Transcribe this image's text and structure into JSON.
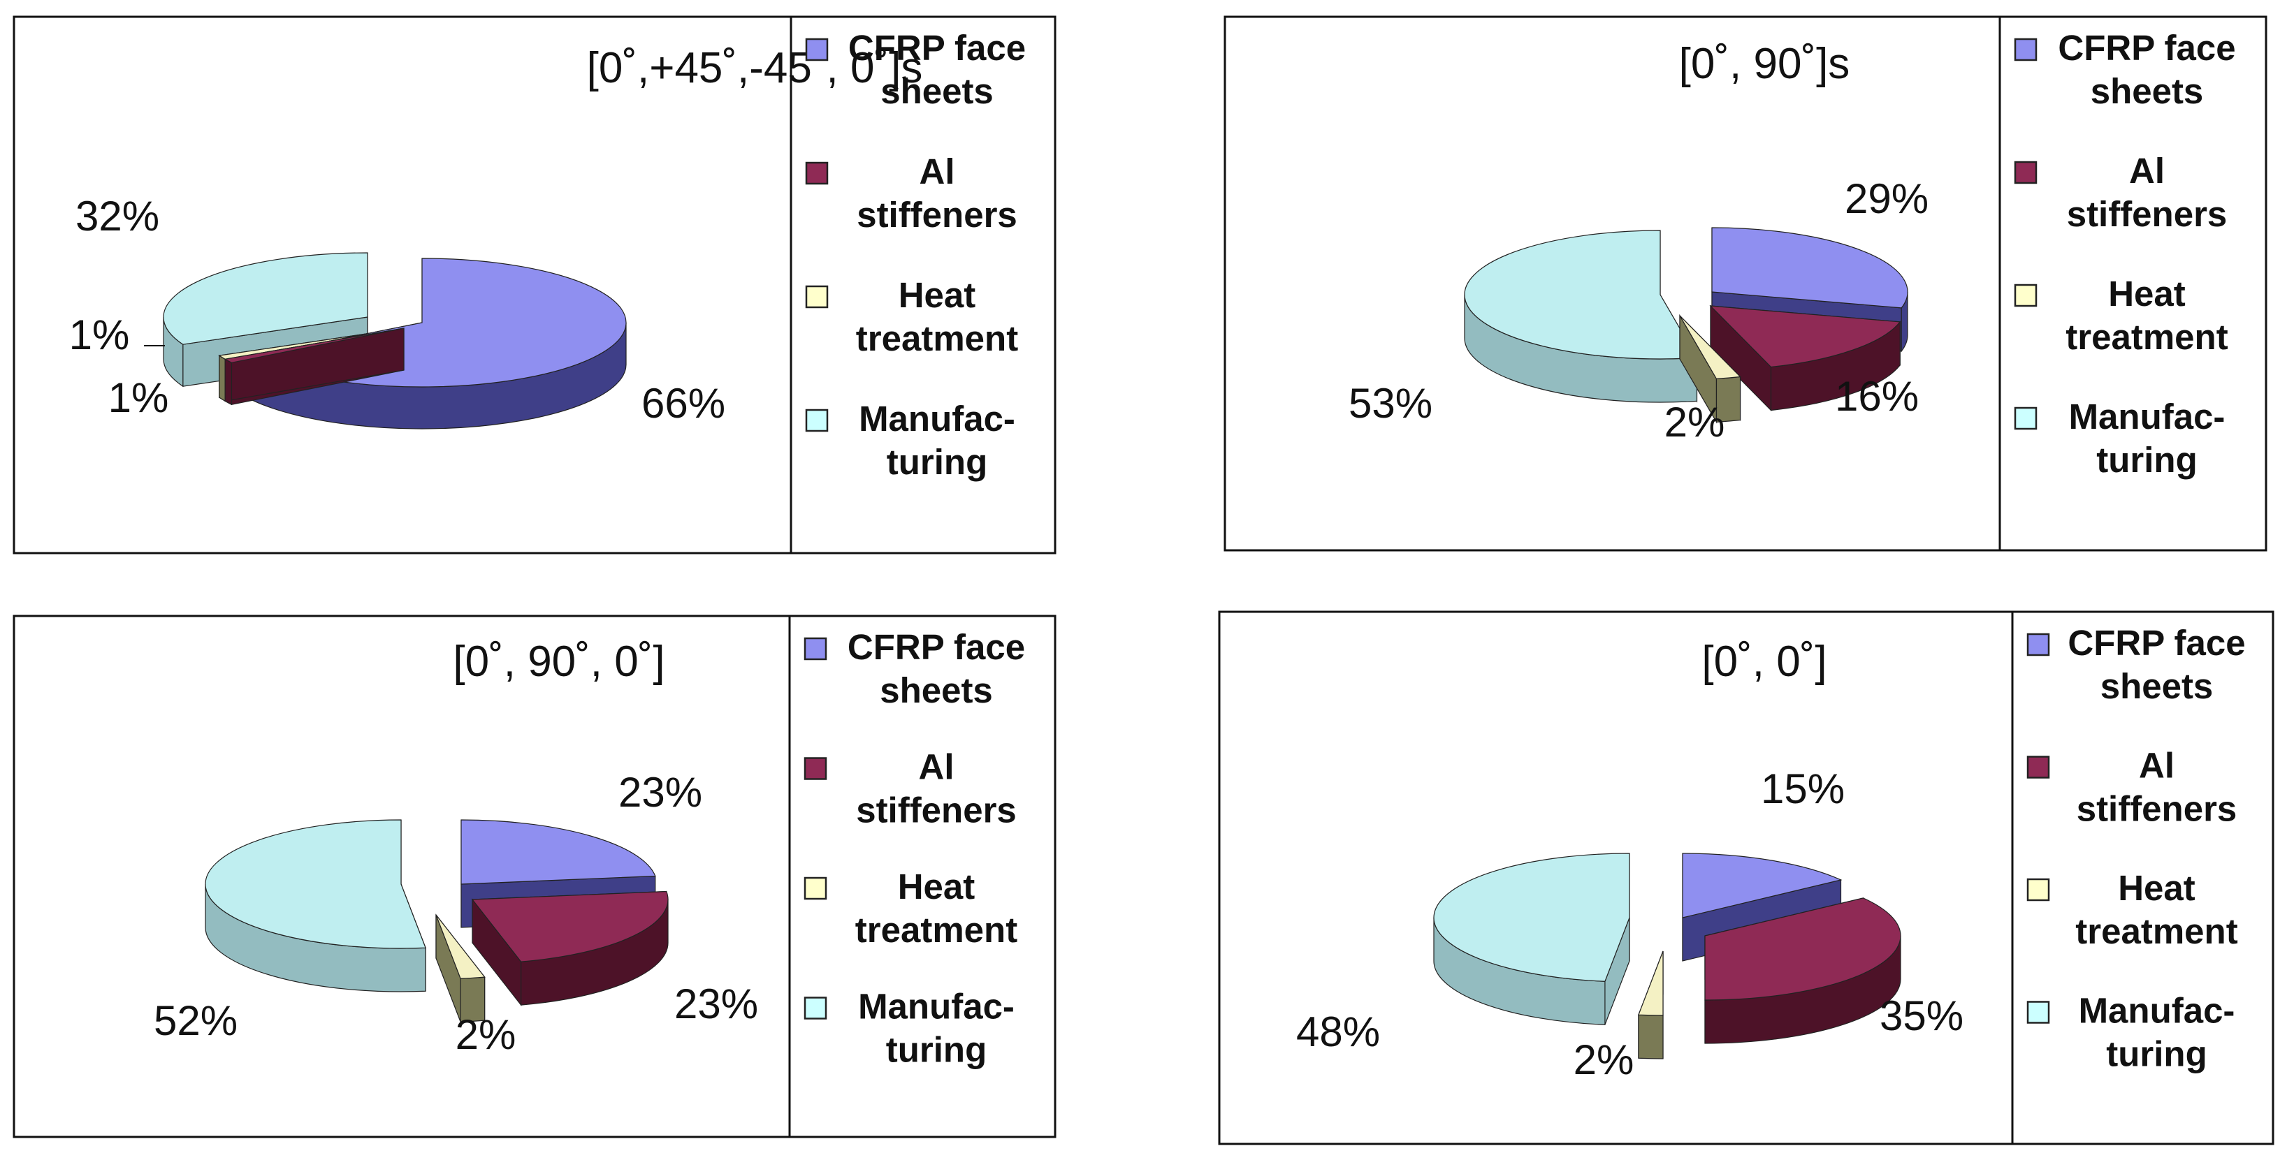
{
  "chart_data": [
    {
      "type": "pie",
      "title": "[0˚,+45˚,-45˚, 0˚]s",
      "categories": [
        "CFRP face sheets",
        "Al stiffeners",
        "Heat treatment",
        "Manufacturing"
      ],
      "values": [
        66,
        1,
        1,
        32
      ],
      "labels": [
        "66%",
        "1%",
        "1%",
        "32%"
      ],
      "legend_position": "right"
    },
    {
      "type": "pie",
      "title": "[0˚, 90˚]s",
      "categories": [
        "CFRP face sheets",
        "Al stiffeners",
        "Heat treatment",
        "Manufacturing"
      ],
      "values": [
        29,
        16,
        2,
        53
      ],
      "labels": [
        "29%",
        "16%",
        "2%",
        "53%"
      ],
      "legend_position": "right"
    },
    {
      "type": "pie",
      "title": "[0˚, 90˚, 0˚]",
      "categories": [
        "CFRP face sheets",
        "Al stiffeners",
        "Heat treatment",
        "Manufacturing"
      ],
      "values": [
        23,
        23,
        2,
        52
      ],
      "labels": [
        "23%",
        "23%",
        "2%",
        "52%"
      ],
      "legend_position": "right"
    },
    {
      "type": "pie",
      "title": "[0˚, 0˚]",
      "categories": [
        "CFRP face sheets",
        "Al stiffeners",
        "Heat treatment",
        "Manufacturing"
      ],
      "values": [
        15,
        35,
        2,
        48
      ],
      "labels": [
        "15%",
        "35%",
        "2%",
        "48%"
      ],
      "legend_position": "right"
    }
  ],
  "legend": [
    [
      "CFRP face",
      "sheets"
    ],
    [
      "Al",
      "stiffeners"
    ],
    [
      "Heat",
      "treatment"
    ],
    [
      "Manufac-",
      "turing"
    ]
  ],
  "colors": {
    "series_top": [
      "#8f8ff0",
      "#8f2a55",
      "#f4f1c4",
      "#bfeef0"
    ],
    "series_side": [
      "#3f3f88",
      "#4d1228",
      "#7a7a55",
      "#93bcc0"
    ],
    "legend_swatch": [
      "#8f8ff0",
      "#8f2a55",
      "#ffffcc",
      "#ccffff"
    ]
  }
}
